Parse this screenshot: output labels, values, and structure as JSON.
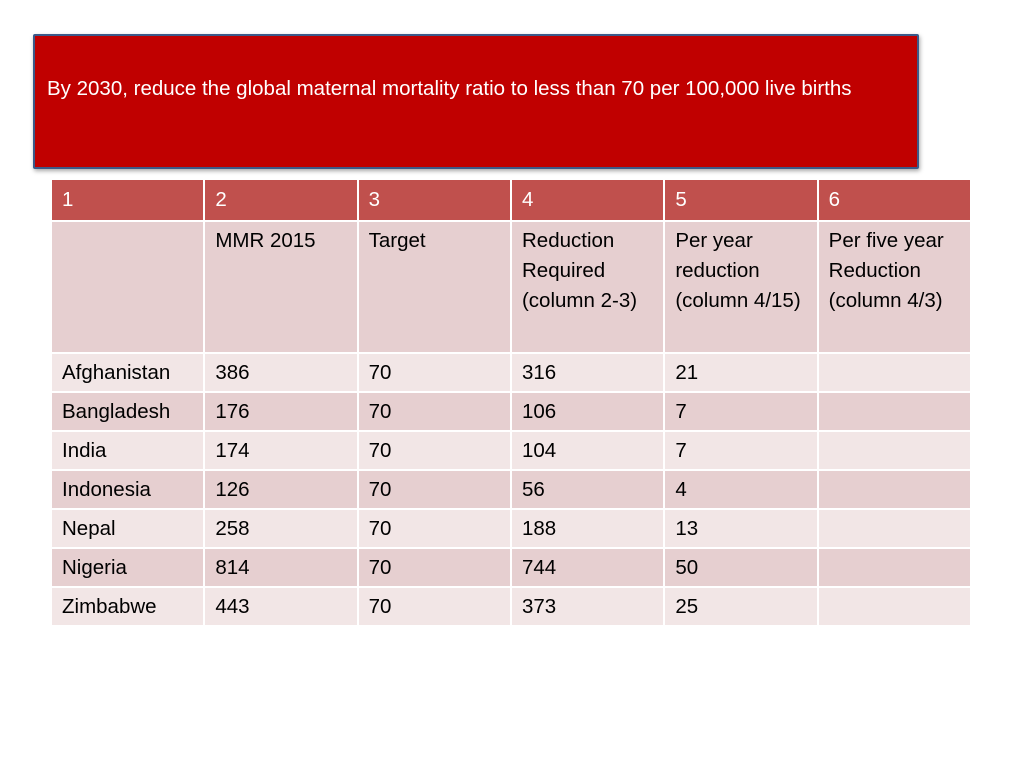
{
  "slide": {
    "title": "By 2030, reduce the global maternal mortality ratio to less than 70 per 100,000 live births"
  },
  "table": {
    "header_numbers": [
      "1",
      "2",
      "3",
      "4",
      "5",
      "6"
    ],
    "subheaders": [
      "",
      "MMR 2015",
      "Target",
      "Reduction Required (column 2-3)",
      "Per year reduction (column 4/15)",
      "Per five year Reduction (column 4/3)"
    ],
    "rows": [
      [
        "Afghanistan",
        "386",
        "70",
        "316",
        "21",
        ""
      ],
      [
        "Bangladesh",
        "176",
        "70",
        "106",
        "7",
        ""
      ],
      [
        "India",
        "174",
        "70",
        "104",
        "7",
        ""
      ],
      [
        "Indonesia",
        "126",
        "70",
        "56",
        "4",
        ""
      ],
      [
        "Nepal",
        "258",
        "70",
        "188",
        "13",
        ""
      ],
      [
        "Nigeria",
        "814",
        "70",
        "744",
        "50",
        ""
      ],
      [
        "Zimbabwe",
        "443",
        "70",
        "373",
        "25",
        ""
      ]
    ]
  },
  "colors": {
    "title_background": "#c00000",
    "header_row": "#c0504d",
    "band_dark": "#e6cfd0",
    "band_light": "#f2e6e6"
  }
}
